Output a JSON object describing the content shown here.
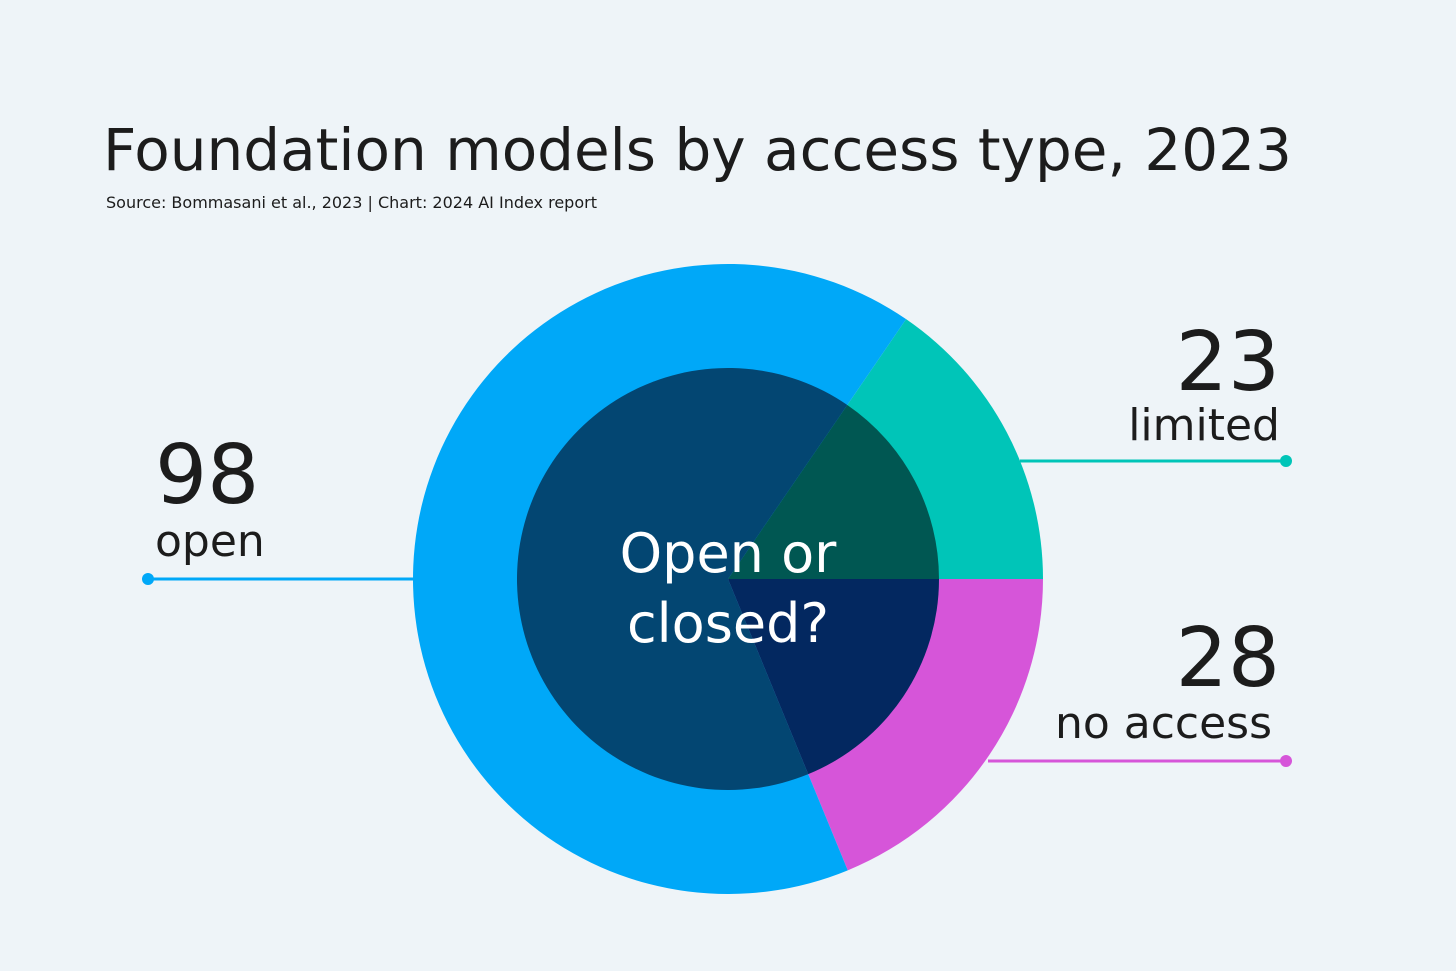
{
  "chart_data": {
    "type": "donut",
    "title": "Foundation models by access type, 2023",
    "subtitle": "Source: Bommasani et al., 2023 | Chart: 2024 AI Index report",
    "center_label": "Open or closed?",
    "categories": [
      "limited",
      "no access",
      "open"
    ],
    "values": [
      23,
      28,
      98
    ],
    "colors": [
      "#00c5b8",
      "#d655d9",
      "#00a8f8"
    ],
    "inner_colors": [
      "#005752",
      "#032860",
      "#034672"
    ]
  }
}
